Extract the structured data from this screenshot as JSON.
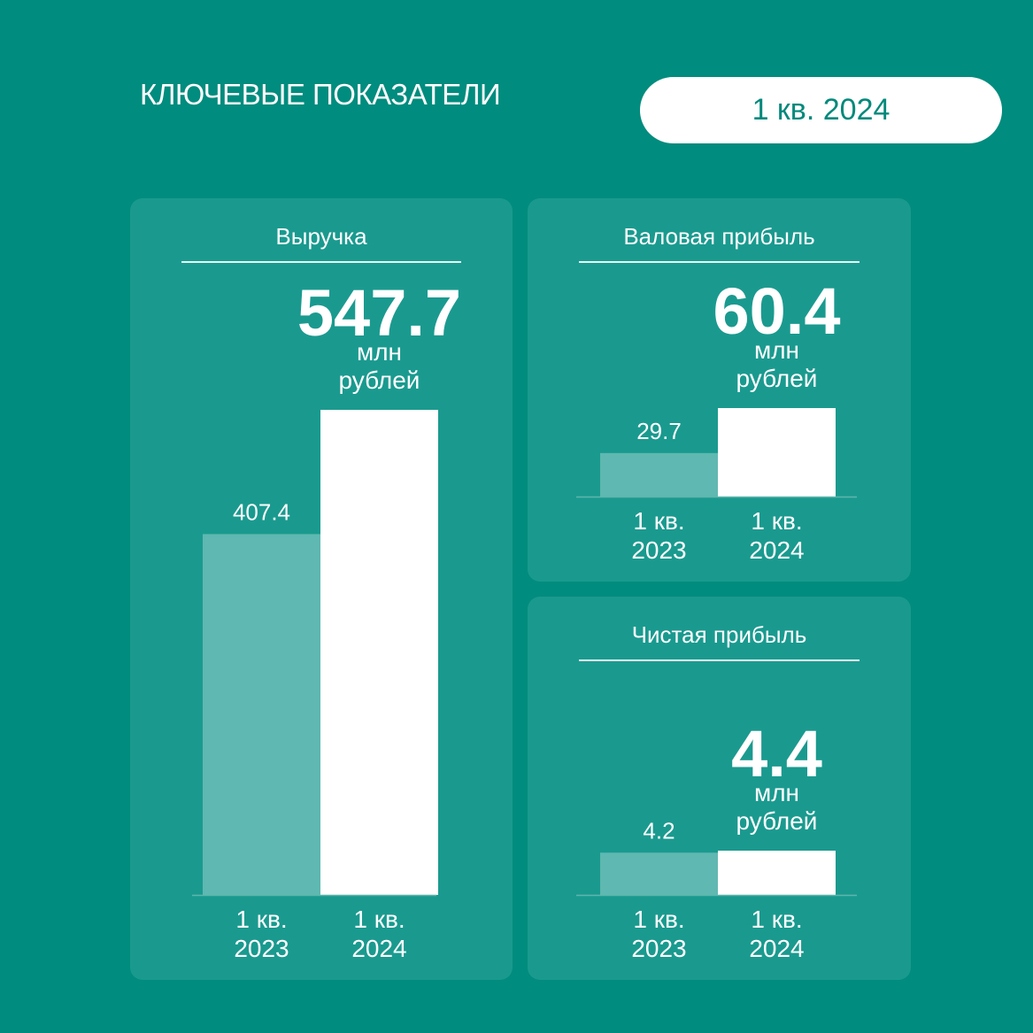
{
  "header": {
    "title": "КЛЮЧЕВЫЕ ПОКАЗАТЕЛИ",
    "period": "1 кв. 2024"
  },
  "colors": {
    "background": "#008c7e",
    "card": "#1a9a8f",
    "prev_bar": "#5fb8b1",
    "curr_bar": "#ffffff"
  },
  "chart_data": [
    {
      "type": "bar",
      "title": "Выручка",
      "categories": [
        "1 кв. 2023",
        "1 кв. 2024"
      ],
      "values": [
        407.4,
        547.7
      ],
      "value_labels": [
        "407.4",
        "547.7"
      ],
      "unit_line1": "млн",
      "unit_line2": "рублей"
    },
    {
      "type": "bar",
      "title": "Валовая прибыль",
      "categories": [
        "1 кв. 2023",
        "1 кв. 2024"
      ],
      "values": [
        29.7,
        60.4
      ],
      "value_labels": [
        "29.7",
        "60.4"
      ],
      "unit_line1": "млн",
      "unit_line2": "рублей"
    },
    {
      "type": "bar",
      "title": "Чистая прибыль",
      "categories": [
        "1 кв. 2023",
        "1 кв. 2024"
      ],
      "values": [
        4.2,
        4.4
      ],
      "value_labels": [
        "4.2",
        "4.4"
      ],
      "unit_line1": "млн",
      "unit_line2": "рублей"
    }
  ]
}
